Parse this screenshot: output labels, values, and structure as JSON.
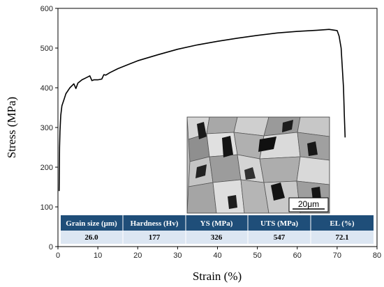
{
  "chart_data": {
    "type": "line",
    "xlabel": "Strain (%)",
    "ylabel": "Stress (MPa)",
    "xlim": [
      0,
      80
    ],
    "ylim": [
      0,
      600
    ],
    "x_ticks": [
      0,
      10,
      20,
      30,
      40,
      50,
      60,
      70,
      80
    ],
    "y_ticks": [
      0,
      100,
      200,
      300,
      400,
      500,
      600
    ],
    "grid": false,
    "series": [
      {
        "x": [
          0.3,
          0.4,
          0.5,
          0.7,
          1.0,
          1.5,
          2.0,
          3.0,
          4.0,
          4.5,
          5.0,
          6.0,
          7.0,
          8.0,
          8.5,
          9.0,
          10.0,
          11.0,
          11.5,
          12.0,
          13.0,
          15.0,
          18.0,
          20.0,
          25.0,
          30.0,
          35.0,
          40.0,
          45.0,
          50.0,
          55.0,
          60.0,
          65.0,
          68.0,
          70.0,
          70.5,
          71.0,
          71.3,
          71.6,
          71.8,
          72.0
        ],
        "y": [
          140,
          250,
          290,
          330,
          355,
          370,
          385,
          400,
          410,
          398,
          412,
          420,
          425,
          430,
          418,
          420,
          420,
          422,
          433,
          432,
          438,
          448,
          460,
          468,
          483,
          497,
          508,
          517,
          525,
          532,
          538,
          542,
          545,
          547,
          544,
          530,
          500,
          450,
          400,
          330,
          275
        ]
      }
    ],
    "inset": {
      "table": {
        "headers": [
          "Grain size (μm)",
          "Hardness (Hv)",
          "YS (MPa)",
          "UTS (MPa)",
          "EL (%)"
        ],
        "values": [
          "26.0",
          "177",
          "326",
          "547",
          "72.1"
        ]
      },
      "micrograph_scale_bar": "20μm"
    },
    "colors": {
      "line": "#000000",
      "table_header": "#1f4e79",
      "table_row": "#dce6f2"
    }
  }
}
